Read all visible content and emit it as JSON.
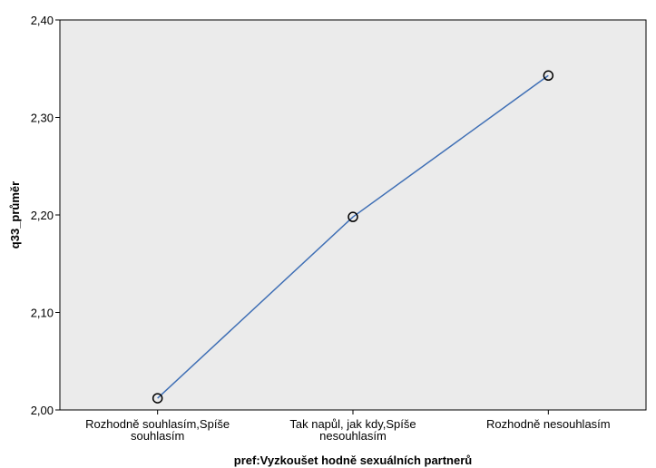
{
  "chart_data": {
    "type": "line",
    "categories": [
      [
        "Rozhodně souhlasím,Spíše",
        "souhlasím"
      ],
      [
        "Tak napůl, jak kdy,Spíše",
        "nesouhlasím"
      ],
      [
        "Rozhodně nesouhlasím"
      ]
    ],
    "values": [
      2.012,
      2.198,
      2.343
    ],
    "xlabel": "pref:Vyzkoušet hodně sexuálních partnerů",
    "ylabel": "q33_průměr",
    "ylim": [
      2.0,
      2.4
    ],
    "yticks": [
      "2,00",
      "2,10",
      "2,20",
      "2,30",
      "2,40"
    ],
    "ytick_values": [
      2.0,
      2.1,
      2.2,
      2.3,
      2.4
    ],
    "grid": false,
    "colors": {
      "plot_background": "#ebebeb",
      "line": "#3f6fb5",
      "marker": "#000000",
      "axis": "#000000"
    }
  }
}
